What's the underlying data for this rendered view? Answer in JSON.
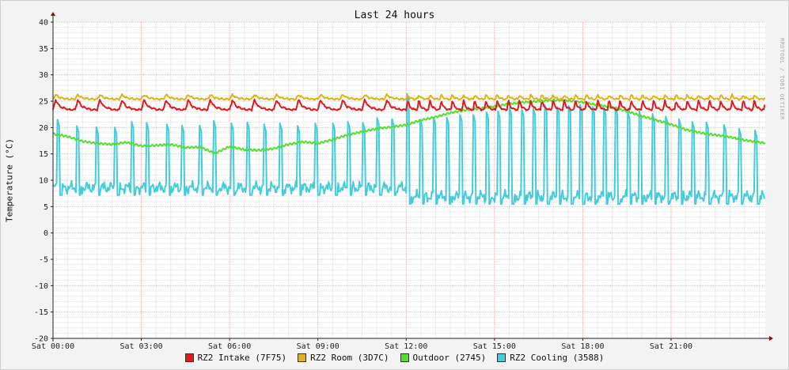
{
  "chart_data": {
    "type": "line",
    "title": "Last 24 hours",
    "ylabel": "Temperature (°C)",
    "watermark": "RRDTOOL / TOBI OETIKER",
    "ylim": [
      -20,
      40
    ],
    "yticks": [
      40,
      35,
      30,
      25,
      20,
      15,
      10,
      5,
      0,
      -5,
      -10,
      -15,
      -20
    ],
    "xlim_hours": [
      0,
      24.2
    ],
    "xticks": [
      {
        "hour": 0,
        "label": "Sat 00:00"
      },
      {
        "hour": 3,
        "label": "Sat 03:00"
      },
      {
        "hour": 6,
        "label": "Sat 06:00"
      },
      {
        "hour": 9,
        "label": "Sat 09:00"
      },
      {
        "hour": 12,
        "label": "Sat 12:00"
      },
      {
        "hour": 15,
        "label": "Sat 15:00"
      },
      {
        "hour": 18,
        "label": "Sat 18:00"
      },
      {
        "hour": 21,
        "label": "Sat 21:00"
      }
    ],
    "grid": true,
    "legend": "bottom",
    "series": [
      {
        "name": "RZ2 Intake (7F75)",
        "color": "#e31a1c",
        "baseline": 23.4,
        "peak": 25.2,
        "period_hours": 0.75,
        "dense_from_hour": 12.0,
        "dense_period_hours": 0.38
      },
      {
        "name": "RZ2 Room (3D7C)",
        "color": "#e0b21a",
        "baseline": 25.4,
        "peak": 26.2,
        "period_hours": 0.75,
        "dense_from_hour": 12.0,
        "dense_period_hours": 0.38
      },
      {
        "name": "Outdoor (2745)",
        "color": "#55dd33",
        "points": [
          [
            0,
            18.8
          ],
          [
            0.5,
            18.3
          ],
          [
            1,
            17.4
          ],
          [
            1.5,
            17.0
          ],
          [
            2,
            16.8
          ],
          [
            2.5,
            17.2
          ],
          [
            3,
            16.5
          ],
          [
            3.5,
            16.6
          ],
          [
            4,
            16.8
          ],
          [
            4.5,
            16.2
          ],
          [
            5,
            16.3
          ],
          [
            5.5,
            15.1
          ],
          [
            6,
            16.4
          ],
          [
            6.5,
            15.8
          ],
          [
            7,
            15.7
          ],
          [
            7.5,
            16.0
          ],
          [
            8,
            16.8
          ],
          [
            8.5,
            17.3
          ],
          [
            9,
            17.0
          ],
          [
            9.5,
            17.7
          ],
          [
            10,
            18.6
          ],
          [
            10.5,
            19.2
          ],
          [
            11,
            19.8
          ],
          [
            11.5,
            20.1
          ],
          [
            12,
            20.5
          ],
          [
            12.5,
            21.4
          ],
          [
            13,
            22.0
          ],
          [
            13.5,
            22.8
          ],
          [
            14,
            23.3
          ],
          [
            14.5,
            23.6
          ],
          [
            15,
            24.0
          ],
          [
            15.5,
            24.5
          ],
          [
            16,
            24.8
          ],
          [
            16.5,
            25.0
          ],
          [
            17,
            25.2
          ],
          [
            17.5,
            25.1
          ],
          [
            18,
            24.8
          ],
          [
            18.5,
            24.3
          ],
          [
            19,
            23.8
          ],
          [
            19.5,
            23.1
          ],
          [
            20,
            22.2
          ],
          [
            20.5,
            21.4
          ],
          [
            21,
            20.6
          ],
          [
            21.5,
            19.6
          ],
          [
            22,
            19.0
          ],
          [
            22.5,
            18.6
          ],
          [
            23,
            18.2
          ],
          [
            23.5,
            17.6
          ],
          [
            24,
            17.2
          ],
          [
            24.2,
            17.1
          ]
        ]
      },
      {
        "name": "RZ2 Cooling (3588)",
        "color": "#44ccdd",
        "baseline_early": 8.6,
        "baseline_late": 6.9,
        "late_from_hour": 12.0,
        "spike_hours": [
          0.15,
          0.8,
          1.45,
          2.1,
          2.65,
          3.15,
          3.85,
          4.35,
          4.95,
          5.45,
          6.05,
          6.6,
          7.15,
          7.7,
          8.3,
          8.9,
          9.5,
          10.0,
          10.5,
          11.0,
          11.5,
          12.0,
          12.45,
          12.9,
          13.35,
          13.8,
          14.25,
          14.7,
          15.1,
          15.5,
          15.9,
          16.3,
          16.7,
          17.1,
          17.5,
          17.9,
          18.3,
          18.7,
          19.1,
          19.5,
          19.9,
          20.35,
          20.8,
          21.25,
          21.7,
          22.2,
          22.8,
          23.3,
          23.85
        ],
        "spike_peaks": [
          21.5,
          20.5,
          20.5,
          20.0,
          21.5,
          21.5,
          21.0,
          21.0,
          21.0,
          21.5,
          21.0,
          21.0,
          21.0,
          21.0,
          20.5,
          21.0,
          21.0,
          21.5,
          21.5,
          22.0,
          22.0,
          27.0,
          22.0,
          22.5,
          22.5,
          23.0,
          23.0,
          23.5,
          23.5,
          24.0,
          24.0,
          24.0,
          24.5,
          24.5,
          24.5,
          24.5,
          24.5,
          24.0,
          24.0,
          23.5,
          23.5,
          23.0,
          22.5,
          22.0,
          21.5,
          21.0,
          20.5,
          20.0,
          19.5
        ]
      }
    ]
  }
}
